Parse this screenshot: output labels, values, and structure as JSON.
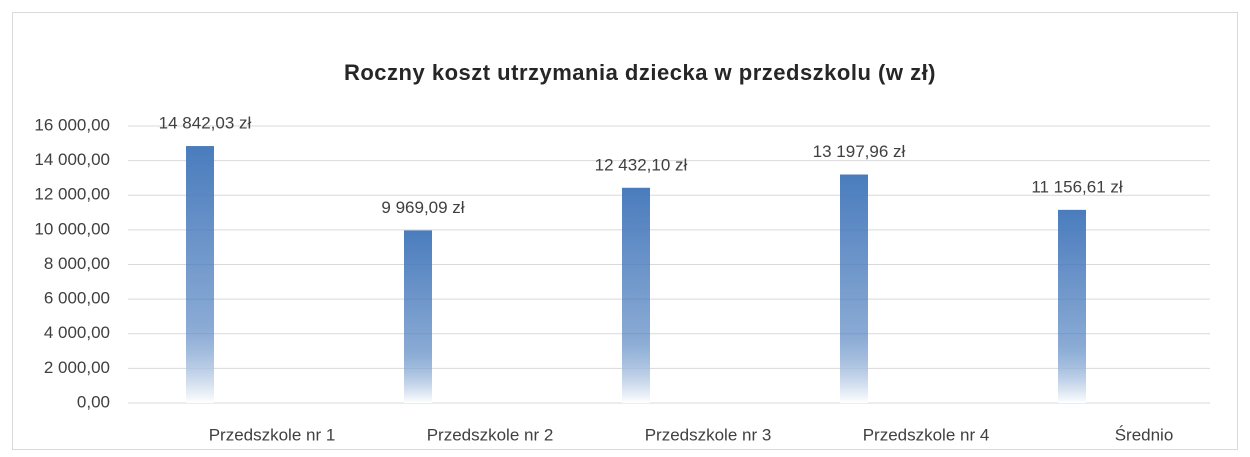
{
  "chart_data": {
    "type": "bar",
    "title": "Roczny koszt utrzymania dziecka w przedszkolu (w zł)",
    "categories": [
      "Przedszkole nr 1",
      "Przedszkole nr 2",
      "Przedszkole nr 3",
      "Przedszkole nr 4",
      "Średnio"
    ],
    "values": [
      14842.03,
      9969.09,
      12432.1,
      13197.96,
      11156.61
    ],
    "value_labels": [
      "14 842,03 zł",
      "9 969,09 zł",
      "12 432,10 zł",
      "13 197,96 zł",
      "11 156,61 zł"
    ],
    "color": "#4a7cbd",
    "ylim": [
      0,
      16000
    ],
    "yticks": [
      {
        "value": 0,
        "label": "0,00"
      },
      {
        "value": 2000,
        "label": "2 000,00"
      },
      {
        "value": 4000,
        "label": "4 000,00"
      },
      {
        "value": 6000,
        "label": "6 000,00"
      },
      {
        "value": 8000,
        "label": "8 000,00"
      },
      {
        "value": 10000,
        "label": "10 000,00"
      },
      {
        "value": 12000,
        "label": "12 000,00"
      },
      {
        "value": 14000,
        "label": "14 000,00"
      },
      {
        "value": 16000,
        "label": "16 000,00"
      }
    ],
    "grid": true
  }
}
